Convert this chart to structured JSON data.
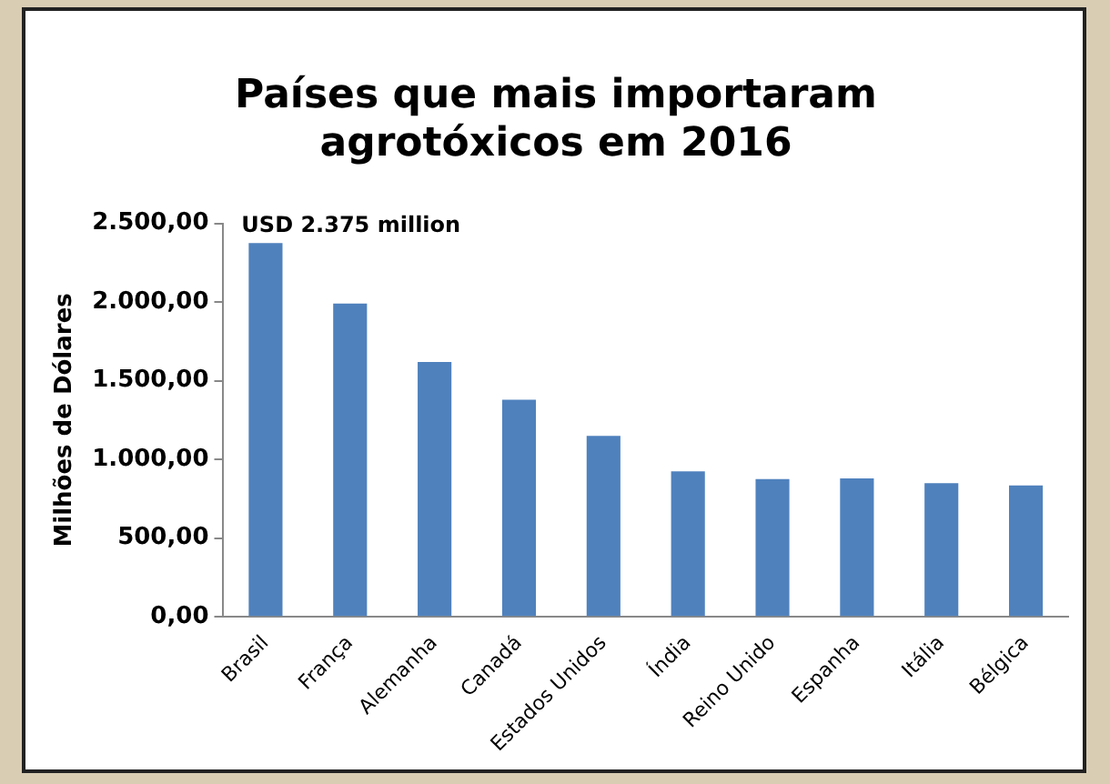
{
  "chart_data": {
    "type": "bar",
    "title": "Países que mais importaram agrotóxicos em 2016",
    "ylabel": "Milhões de Dólares",
    "categories": [
      "Brasil",
      "França",
      "Alemanha",
      "Canadá",
      "Estados Unidos",
      "Índia",
      "Reino Unido",
      "Espanha",
      "Itália",
      "Bélgica"
    ],
    "values": [
      2375,
      1990,
      1620,
      1380,
      1150,
      925,
      875,
      880,
      850,
      835
    ],
    "color": "#4f81bd",
    "ylim": [
      0,
      2500
    ],
    "yticks": [
      {
        "value": 0,
        "label": "0,00"
      },
      {
        "value": 500,
        "label": "500,00"
      },
      {
        "value": 1000,
        "label": "1.000,00"
      },
      {
        "value": 1500,
        "label": "1.500,00"
      },
      {
        "value": 2000,
        "label": "2.000,00"
      },
      {
        "value": 2500,
        "label": "2.500,00"
      }
    ],
    "grid": false,
    "annotations": [
      {
        "text": "USD 2.375 million",
        "x": "Brasil",
        "y": 2375
      }
    ]
  }
}
